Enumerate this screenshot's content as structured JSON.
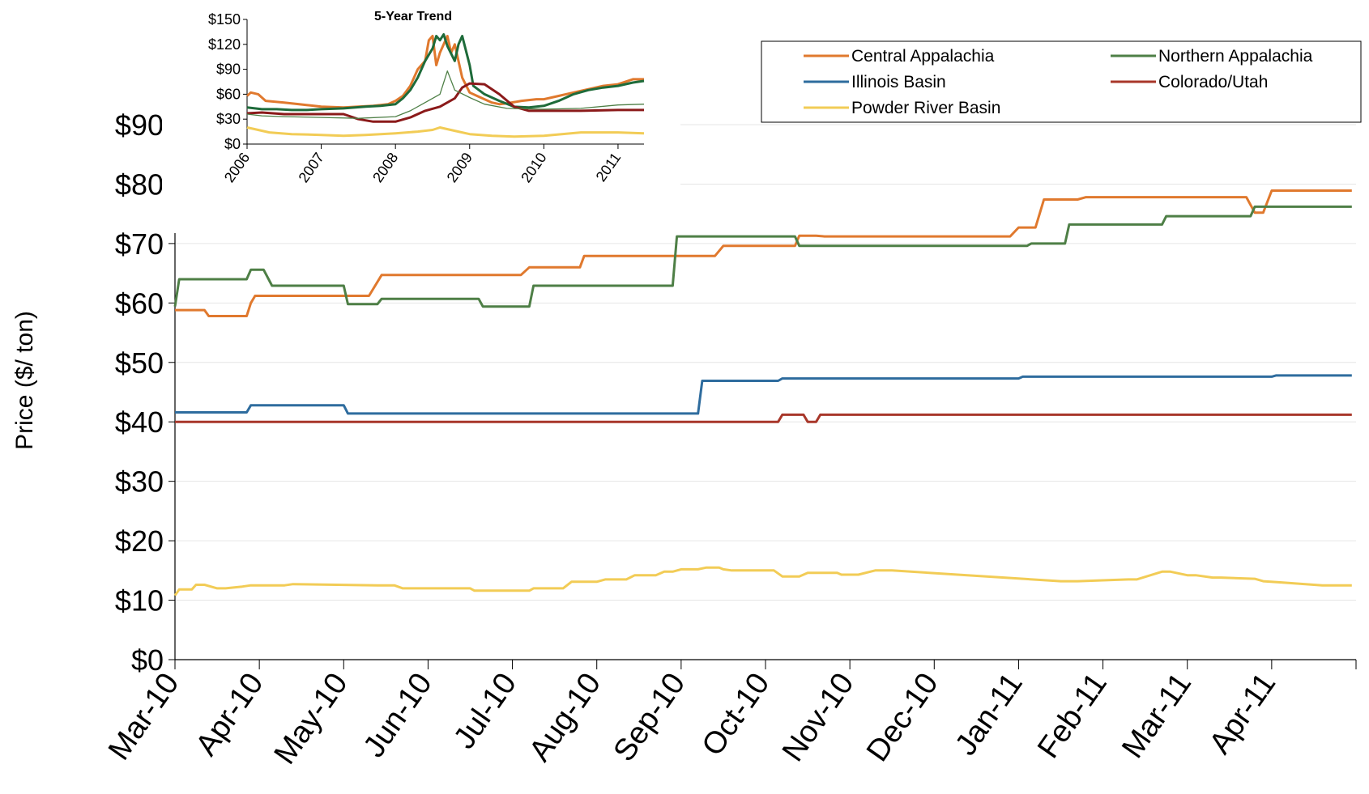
{
  "chart_data": [
    {
      "type": "line",
      "title": "",
      "xlabel": "",
      "ylabel": "Price ($/ ton)",
      "ylim": [
        0,
        90
      ],
      "yticks": [
        "$0",
        "$10",
        "$20",
        "$30",
        "$40",
        "$50",
        "$60",
        "$70",
        "$80",
        "$90"
      ],
      "categories": [
        "Mar-10",
        "Apr-10",
        "May-10",
        "Jun-10",
        "Jul-10",
        "Aug-10",
        "Sep-10",
        "Oct-10",
        "Nov-10",
        "Dec-10",
        "Jan-11",
        "Feb-11",
        "Mar-11",
        "Apr-11"
      ],
      "grid": "horizontal",
      "legend": "top-right",
      "series": [
        {
          "name": "Central Appalachia",
          "color": "#E0792E",
          "x": [
            0,
            0.35,
            0.4,
            0.85,
            0.9,
            0.95,
            1.35,
            2.3,
            2.45,
            4.1,
            4.2,
            4.8,
            4.85,
            6.4,
            6.5,
            7.35,
            7.4,
            7.6,
            7.7,
            9.9,
            10.0,
            10.2,
            10.3,
            10.7,
            10.8,
            12.7,
            12.8,
            12.9,
            13.0,
            13.95
          ],
          "values": [
            58.8,
            58.8,
            57.8,
            57.8,
            60.0,
            61.2,
            61.2,
            61.2,
            64.7,
            64.7,
            66.0,
            66.0,
            67.9,
            67.9,
            69.6,
            69.6,
            71.3,
            71.3,
            71.2,
            71.2,
            72.7,
            72.7,
            77.4,
            77.4,
            77.8,
            77.8,
            75.2,
            75.2,
            78.9,
            78.9
          ]
        },
        {
          "name": "Northern Appalachia",
          "color": "#4E7F46",
          "x": [
            0,
            0.05,
            0.85,
            0.9,
            1.05,
            1.15,
            2.0,
            2.05,
            2.4,
            2.45,
            3.6,
            3.65,
            4.2,
            4.25,
            5.9,
            5.95,
            7.35,
            7.4,
            10.1,
            10.15,
            10.55,
            10.6,
            11.7,
            11.75,
            12.75,
            12.8,
            13.95
          ],
          "values": [
            59.4,
            64.0,
            64.0,
            65.6,
            65.6,
            62.9,
            62.9,
            59.8,
            59.8,
            60.7,
            60.7,
            59.4,
            59.4,
            62.9,
            62.9,
            71.2,
            71.2,
            69.6,
            69.6,
            70.0,
            70.0,
            73.2,
            73.2,
            74.6,
            74.6,
            76.2,
            76.2
          ]
        },
        {
          "name": "Illinois Basin",
          "color": "#2E6C9E",
          "x": [
            0,
            0.85,
            0.9,
            2.0,
            2.05,
            6.2,
            6.25,
            7.15,
            7.2,
            10.0,
            10.05,
            13.0,
            13.05,
            13.95
          ],
          "values": [
            41.6,
            41.6,
            42.8,
            42.8,
            41.4,
            41.4,
            46.9,
            46.9,
            47.3,
            47.3,
            47.6,
            47.6,
            47.8,
            47.8
          ]
        },
        {
          "name": "Colorado/Utah",
          "color": "#A8372A",
          "x": [
            0,
            7.15,
            7.2,
            7.45,
            7.5,
            7.6,
            7.65,
            13.95
          ],
          "values": [
            40.0,
            40.0,
            41.2,
            41.2,
            40.0,
            40.0,
            41.2,
            41.2
          ]
        },
        {
          "name": "Powder River Basin",
          "color": "#F2CC56",
          "x": [
            0,
            0.05,
            0.2,
            0.25,
            0.35,
            0.5,
            0.6,
            0.8,
            0.9,
            1.3,
            1.4,
            2.4,
            2.6,
            2.7,
            3.5,
            3.55,
            4.2,
            4.25,
            4.6,
            4.7,
            5.0,
            5.1,
            5.35,
            5.45,
            5.7,
            5.8,
            5.9,
            6.0,
            6.2,
            6.3,
            6.45,
            6.5,
            6.6,
            7.1,
            7.2,
            7.4,
            7.5,
            7.85,
            7.9,
            8.1,
            8.3,
            8.5,
            10.5,
            10.7,
            11.3,
            11.4,
            11.7,
            11.8,
            12.0,
            12.1,
            12.3,
            12.4,
            12.8,
            12.9,
            13.1,
            13.3,
            13.6,
            13.95
          ],
          "values": [
            10.8,
            11.8,
            11.8,
            12.6,
            12.6,
            12.0,
            12.0,
            12.3,
            12.5,
            12.5,
            12.7,
            12.5,
            12.5,
            12.0,
            12.0,
            11.6,
            11.6,
            12.0,
            12.0,
            13.1,
            13.1,
            13.5,
            13.5,
            14.2,
            14.2,
            14.8,
            14.8,
            15.2,
            15.2,
            15.5,
            15.5,
            15.2,
            15.0,
            15.0,
            14.0,
            14.0,
            14.6,
            14.6,
            14.3,
            14.3,
            15.0,
            15.0,
            13.2,
            13.2,
            13.5,
            13.5,
            14.8,
            14.8,
            14.2,
            14.2,
            13.8,
            13.8,
            13.6,
            13.2,
            13.0,
            12.8,
            12.5,
            12.5
          ]
        }
      ]
    },
    {
      "type": "line",
      "title": "5-Year Trend",
      "xlabel": "",
      "ylabel": "",
      "ylim": [
        0,
        150
      ],
      "yticks": [
        "$0",
        "$30",
        "$60",
        "$90",
        "$120",
        "$150"
      ],
      "categories": [
        "2006",
        "2007",
        "2008",
        "2009",
        "2010",
        "2011"
      ],
      "series": [
        {
          "name": "Central Appalachia",
          "color": "#E0792E",
          "x": [
            2006.0,
            2006.05,
            2006.15,
            2006.25,
            2006.5,
            2006.8,
            2007.0,
            2007.3,
            2007.5,
            2007.7,
            2007.9,
            2008.0,
            2008.1,
            2008.2,
            2008.3,
            2008.4,
            2008.45,
            2008.5,
            2008.55,
            2008.6,
            2008.7,
            2008.75,
            2008.8,
            2008.9,
            2009.0,
            2009.1,
            2009.2,
            2009.3,
            2009.4,
            2009.5,
            2009.7,
            2009.9,
            2010.0,
            2010.2,
            2010.4,
            2010.6,
            2010.8,
            2011.0,
            2011.2,
            2011.35
          ],
          "values": [
            58,
            62,
            60,
            52,
            50,
            47,
            45,
            44,
            45,
            46,
            48,
            52,
            58,
            70,
            90,
            100,
            125,
            130,
            95,
            110,
            130,
            110,
            120,
            80,
            62,
            58,
            54,
            50,
            48,
            49,
            52,
            54,
            54,
            58,
            62,
            66,
            70,
            72,
            78,
            78
          ]
        },
        {
          "name": "Northern Appalachia",
          "color": "#1E6B3A",
          "x": [
            2006.0,
            2006.2,
            2006.4,
            2006.6,
            2006.8,
            2007.0,
            2007.3,
            2007.6,
            2007.8,
            2008.0,
            2008.1,
            2008.2,
            2008.3,
            2008.4,
            2008.5,
            2008.55,
            2008.6,
            2008.65,
            2008.7,
            2008.8,
            2008.85,
            2008.9,
            2009.0,
            2009.05,
            2009.2,
            2009.4,
            2009.6,
            2009.8,
            2010.0,
            2010.2,
            2010.4,
            2010.6,
            2010.8,
            2011.0,
            2011.2,
            2011.35
          ],
          "values": [
            44,
            42,
            42,
            41,
            41,
            42,
            43,
            45,
            46,
            48,
            55,
            65,
            80,
            100,
            115,
            130,
            125,
            132,
            118,
            100,
            120,
            130,
            95,
            70,
            60,
            52,
            45,
            44,
            46,
            52,
            60,
            65,
            68,
            70,
            74,
            76
          ]
        },
        {
          "name": "Colorado/Utah",
          "color": "#8B1A1A",
          "x": [
            2006.0,
            2006.2,
            2006.5,
            2006.8,
            2007.0,
            2007.3,
            2007.5,
            2007.7,
            2008.0,
            2008.2,
            2008.4,
            2008.6,
            2008.8,
            2008.9,
            2009.0,
            2009.2,
            2009.4,
            2009.6,
            2009.8,
            2010.0,
            2010.5,
            2011.0,
            2011.35
          ],
          "values": [
            37,
            38,
            36,
            36,
            36,
            36,
            30,
            27,
            27,
            32,
            40,
            45,
            55,
            68,
            73,
            72,
            60,
            45,
            40,
            40,
            40,
            41,
            41
          ]
        },
        {
          "name": "Illinois Basin",
          "color": "#4E7F46",
          "x": [
            2006.0,
            2006.2,
            2006.5,
            2007.0,
            2007.5,
            2008.0,
            2008.2,
            2008.4,
            2008.6,
            2008.7,
            2008.8,
            2009.0,
            2009.2,
            2009.5,
            2010.0,
            2010.5,
            2011.0,
            2011.35
          ],
          "values": [
            36,
            34,
            33,
            32,
            31,
            33,
            40,
            50,
            60,
            88,
            65,
            56,
            48,
            43,
            42,
            43,
            47,
            48
          ]
        },
        {
          "name": "Powder River Basin",
          "color": "#F2CC56",
          "x": [
            2006.0,
            2006.1,
            2006.3,
            2006.6,
            2007.0,
            2007.3,
            2007.6,
            2008.0,
            2008.3,
            2008.5,
            2008.6,
            2008.8,
            2009.0,
            2009.3,
            2009.6,
            2010.0,
            2010.5,
            2011.0,
            2011.35
          ],
          "values": [
            20,
            18,
            14,
            12,
            11,
            10,
            11,
            13,
            15,
            17,
            20,
            16,
            12,
            10,
            9,
            10,
            14,
            14,
            13
          ]
        }
      ]
    }
  ]
}
